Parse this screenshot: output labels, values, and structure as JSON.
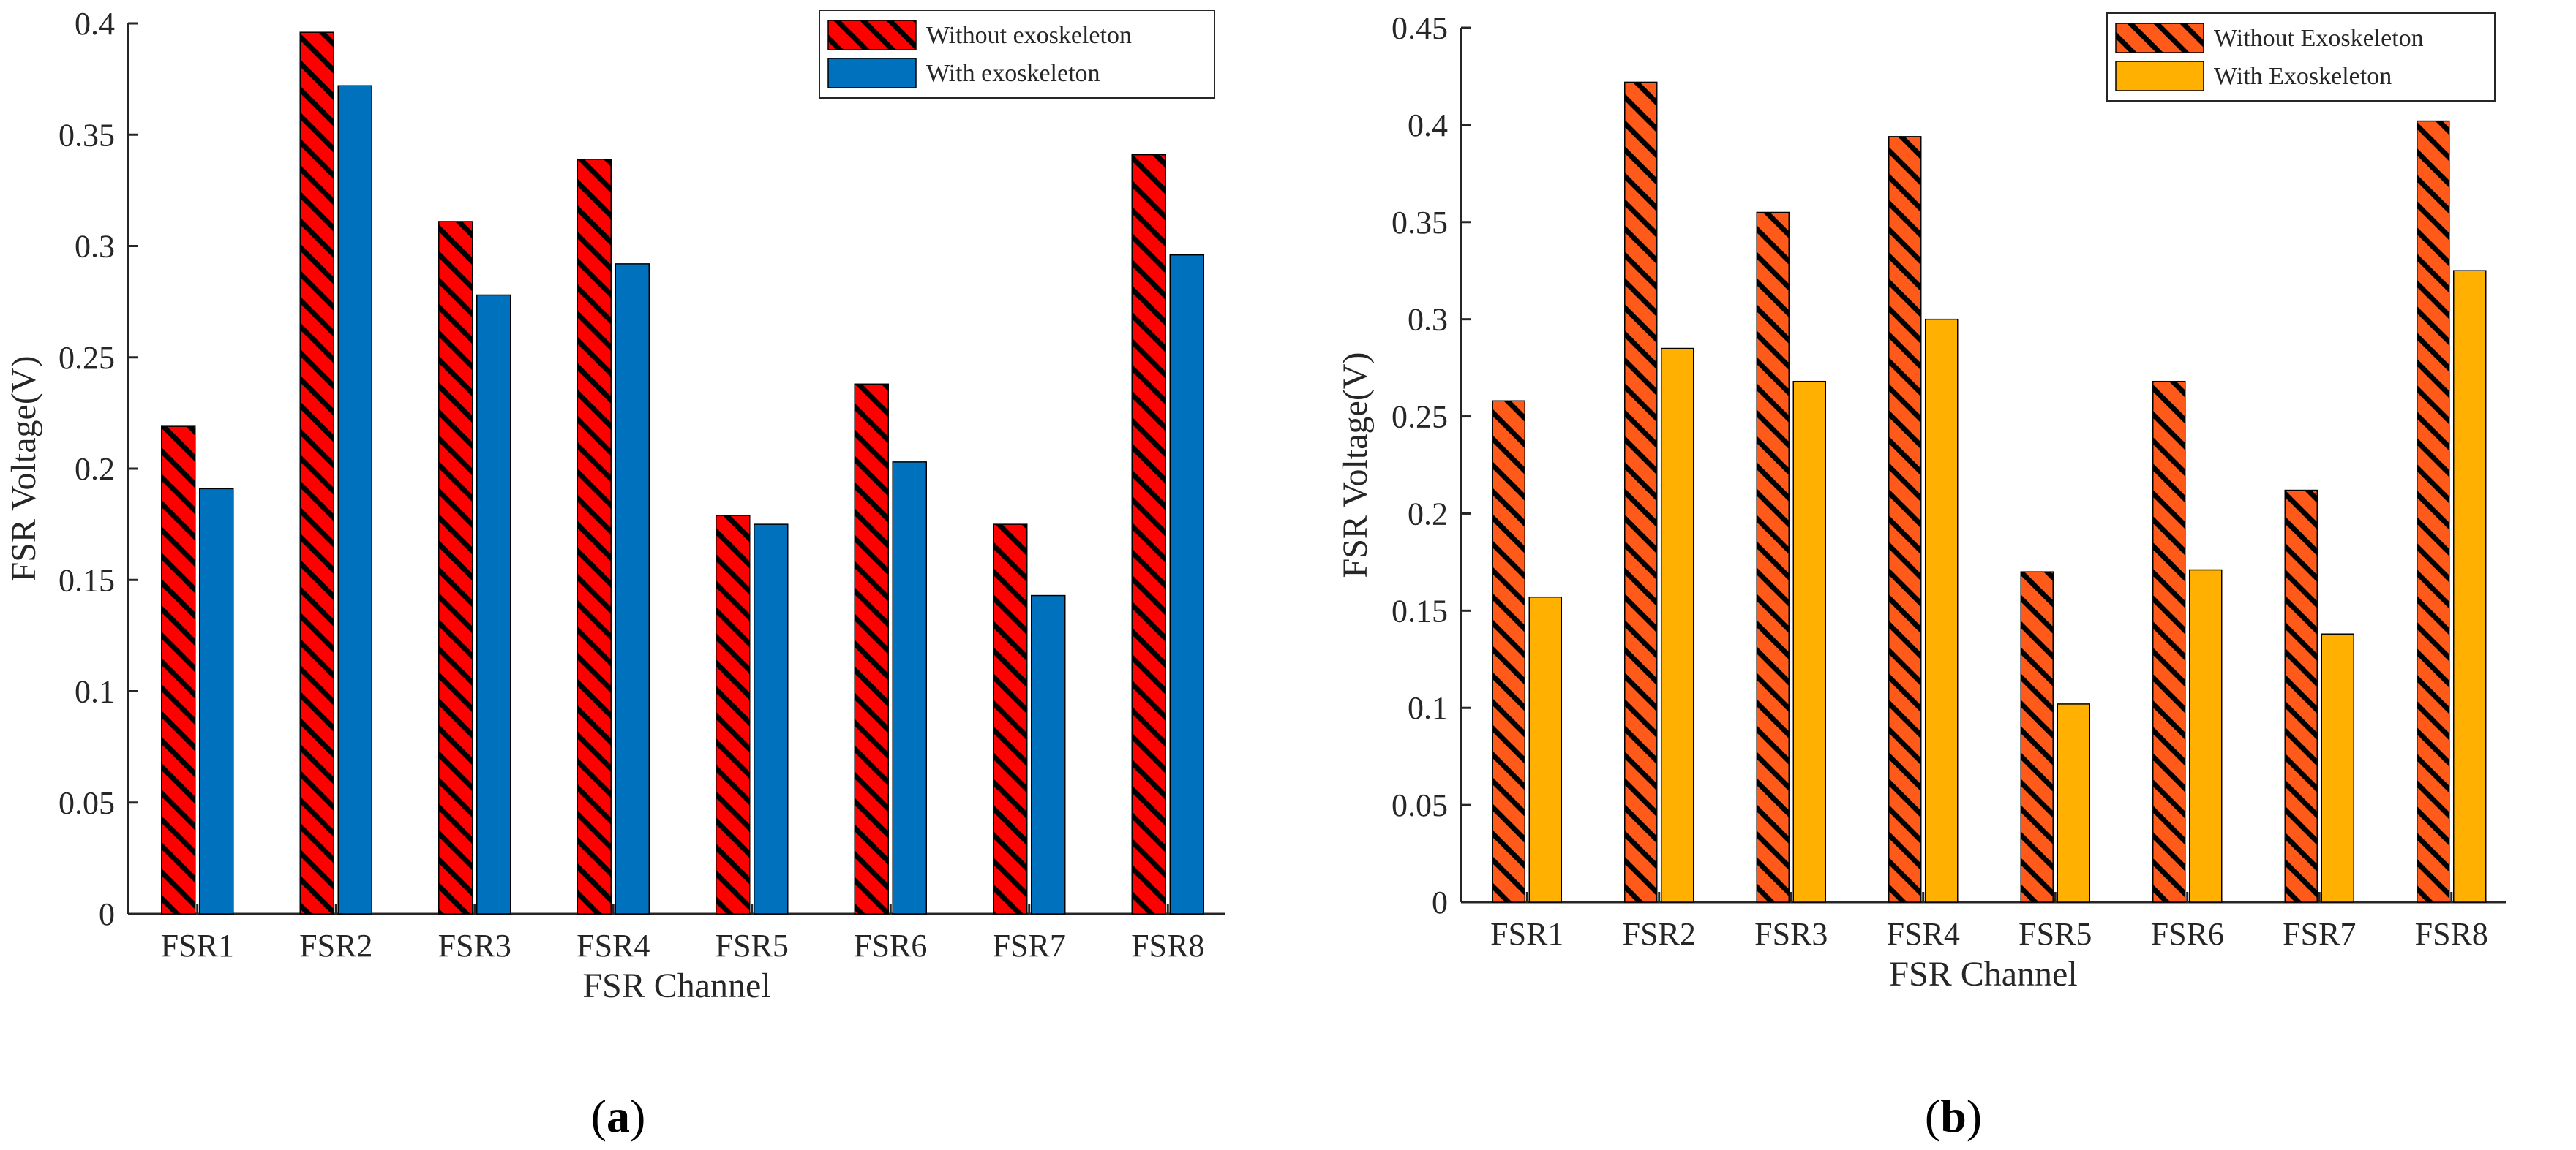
{
  "figure": {
    "panels": [
      {
        "caption_letter": "a",
        "legend": [
          "Without exoskeleton",
          "With exoskeleton"
        ],
        "colors": {
          "without": "#ff0000",
          "with": "#0072bd",
          "hatch": "#000000"
        }
      },
      {
        "caption_letter": "b",
        "legend": [
          "Without Exoskeleton",
          "With Exoskeleton"
        ],
        "colors": {
          "without": "#ff5a1a",
          "with": "#ffb000",
          "hatch": "#000000"
        }
      }
    ]
  },
  "chart_data": [
    {
      "type": "bar",
      "title": "",
      "xlabel": "FSR Channel",
      "ylabel": "FSR Voltage(V)",
      "categories": [
        "FSR1",
        "FSR2",
        "FSR3",
        "FSR4",
        "FSR5",
        "FSR6",
        "FSR7",
        "FSR8"
      ],
      "ylim": [
        0,
        0.4
      ],
      "yticks": [
        0,
        0.05,
        0.1,
        0.15,
        0.2,
        0.25,
        0.3,
        0.35,
        0.4
      ],
      "ytick_labels": [
        "0",
        "0.05",
        "0.1",
        "0.15",
        "0.2",
        "0.25",
        "0.3",
        "0.35",
        "0.4"
      ],
      "legend_position": "top-right",
      "series": [
        {
          "name": "Without exoskeleton",
          "values": [
            0.219,
            0.396,
            0.311,
            0.339,
            0.179,
            0.238,
            0.175,
            0.341
          ]
        },
        {
          "name": "With exoskeleton",
          "values": [
            0.191,
            0.372,
            0.278,
            0.292,
            0.175,
            0.203,
            0.143,
            0.296
          ]
        }
      ]
    },
    {
      "type": "bar",
      "title": "",
      "xlabel": "FSR Channel",
      "ylabel": "FSR Voltage(V)",
      "categories": [
        "FSR1",
        "FSR2",
        "FSR3",
        "FSR4",
        "FSR5",
        "FSR6",
        "FSR7",
        "FSR8"
      ],
      "ylim": [
        0,
        0.45
      ],
      "yticks": [
        0,
        0.05,
        0.1,
        0.15,
        0.2,
        0.25,
        0.3,
        0.35,
        0.4,
        0.45
      ],
      "ytick_labels": [
        "0",
        "0.05",
        "0.1",
        "0.15",
        "0.2",
        "0.25",
        "0.3",
        "0.35",
        "0.4",
        "0.45"
      ],
      "legend_position": "top-right",
      "series": [
        {
          "name": "Without Exoskeleton",
          "values": [
            0.258,
            0.422,
            0.355,
            0.394,
            0.17,
            0.268,
            0.212,
            0.402
          ]
        },
        {
          "name": "With Exoskeleton",
          "values": [
            0.157,
            0.285,
            0.268,
            0.3,
            0.102,
            0.171,
            0.138,
            0.325
          ]
        }
      ]
    }
  ]
}
